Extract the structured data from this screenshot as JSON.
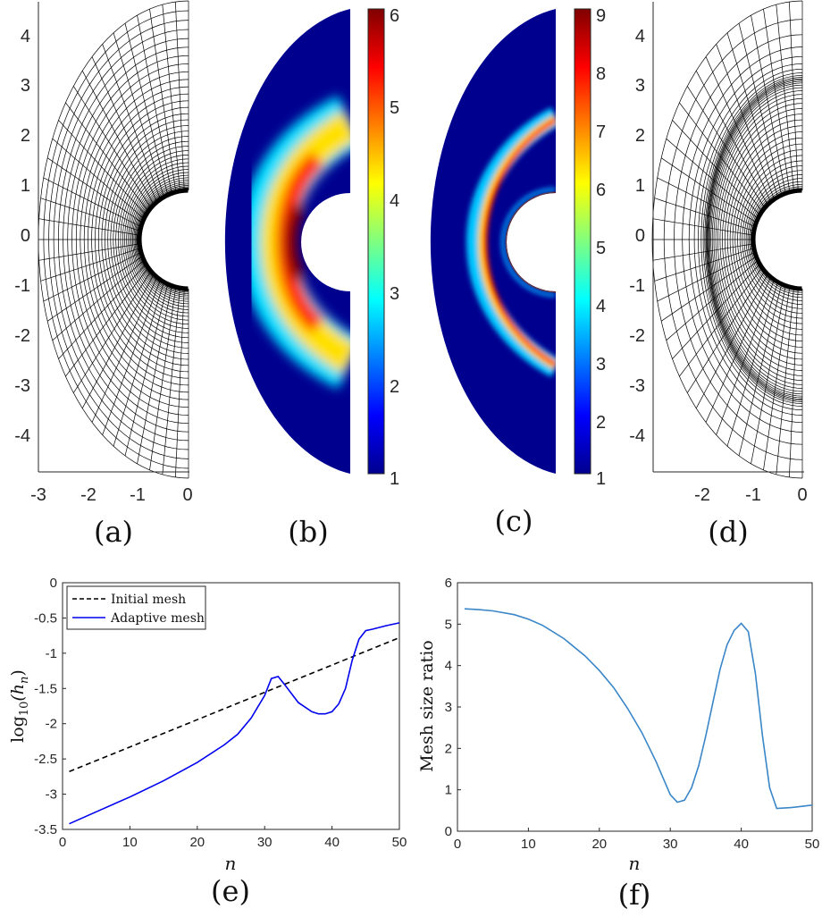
{
  "colors": {
    "axis": "#262626",
    "mesh": "#000000",
    "dashed": "#000000",
    "adaptive": "#0000ee",
    "ratio": "#3a86c8",
    "jet_low": "#00008f",
    "jet_high": "#800000"
  },
  "panels": {
    "a": {
      "label": "(a)",
      "yticks": [
        "4",
        "3",
        "2",
        "1",
        "0",
        "-1",
        "-2",
        "-3",
        "-4"
      ],
      "xticks": [
        "-3",
        "-2",
        "-1",
        "0"
      ]
    },
    "b": {
      "label": "(b)",
      "colorbar_ticks": [
        "6",
        "5",
        "4",
        "3",
        "2",
        "1"
      ],
      "cmin": 1,
      "cmax": 6
    },
    "c": {
      "label": "(c)",
      "colorbar_ticks": [
        "9",
        "8",
        "7",
        "6",
        "5",
        "4",
        "3",
        "2",
        "1"
      ],
      "cmin": 1,
      "cmax": 9
    },
    "d": {
      "label": "(d)",
      "yticks": [
        "4",
        "3",
        "2",
        "1",
        "0",
        "-1",
        "-2",
        "-3",
        "-4"
      ],
      "xticks": [
        "-2",
        "-1",
        "0"
      ]
    },
    "e": {
      "label": "(e)"
    },
    "f": {
      "label": "(f)"
    }
  },
  "chart_data": [
    {
      "type": "line",
      "panel": "e",
      "xlabel": "n",
      "ylabel": "log10(hn)",
      "ylabel_main": "log",
      "ylabel_sub": "10",
      "ylabel_arg_open": "(h",
      "ylabel_arg_sub": "n",
      "ylabel_arg_close": ")",
      "xlim": [
        0,
        50
      ],
      "ylim": [
        -3.5,
        0
      ],
      "xticks": [
        "0",
        "10",
        "20",
        "30",
        "40",
        "50"
      ],
      "yticks": [
        "0",
        "-0.5",
        "-1",
        "-1.5",
        "-2",
        "-2.5",
        "-3",
        "-3.5"
      ],
      "legend": [
        "Initial mesh",
        "Adaptive mesh"
      ],
      "legend_position": "top-left",
      "series": [
        {
          "name": "Initial mesh",
          "style": "dashed",
          "x": [
            1,
            50
          ],
          "y": [
            -2.68,
            -0.78
          ]
        },
        {
          "name": "Adaptive mesh",
          "style": "solid",
          "x": [
            1,
            5,
            10,
            15,
            20,
            24,
            26,
            28,
            30,
            31,
            32,
            33,
            35,
            37,
            38,
            39,
            40,
            41,
            42,
            43,
            44,
            45,
            46,
            48,
            50
          ],
          "y": [
            -3.42,
            -3.25,
            -3.04,
            -2.81,
            -2.55,
            -2.3,
            -2.15,
            -1.92,
            -1.6,
            -1.36,
            -1.33,
            -1.45,
            -1.7,
            -1.83,
            -1.86,
            -1.86,
            -1.83,
            -1.72,
            -1.5,
            -1.1,
            -0.8,
            -0.68,
            -0.66,
            -0.61,
            -0.57
          ]
        }
      ]
    },
    {
      "type": "line",
      "panel": "f",
      "xlabel": "n",
      "ylabel": "Mesh size ratio",
      "xlim": [
        0,
        50
      ],
      "ylim": [
        0,
        6
      ],
      "xticks": [
        "0",
        "10",
        "20",
        "30",
        "40",
        "50"
      ],
      "yticks": [
        "6",
        "5",
        "4",
        "3",
        "2",
        "1",
        "0"
      ],
      "series": [
        {
          "name": "ratio",
          "x": [
            1,
            3,
            5,
            8,
            10,
            12,
            15,
            18,
            20,
            22,
            24,
            26,
            28,
            30,
            31,
            32,
            33,
            34,
            35,
            36,
            37,
            38,
            39,
            40,
            41,
            42,
            43,
            44,
            45,
            47,
            50
          ],
          "y": [
            5.37,
            5.35,
            5.32,
            5.23,
            5.12,
            4.97,
            4.65,
            4.23,
            3.88,
            3.47,
            2.96,
            2.38,
            1.68,
            0.88,
            0.7,
            0.75,
            1.05,
            1.58,
            2.3,
            3.1,
            3.9,
            4.5,
            4.85,
            5.02,
            4.82,
            3.8,
            2.3,
            1.05,
            0.55,
            0.57,
            0.63
          ]
        }
      ]
    }
  ]
}
